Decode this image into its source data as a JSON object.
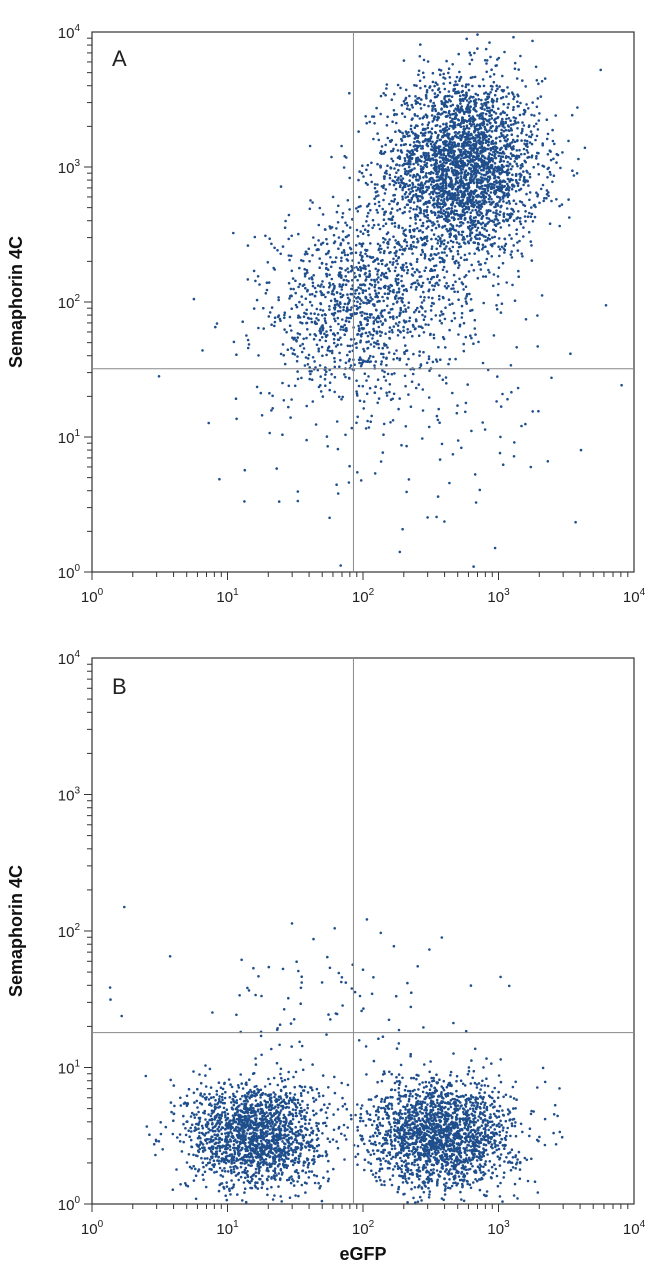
{
  "chart_data": [
    {
      "type": "scatter",
      "panel_label": "A",
      "title": "",
      "xlabel": "",
      "ylabel": "Semaphorin 4C",
      "x_scale": "log",
      "y_scale": "log",
      "xlim": [
        1,
        10000
      ],
      "ylim": [
        1,
        10000
      ],
      "x_ticks": [
        1,
        10,
        100,
        1000,
        10000
      ],
      "y_ticks": [
        1,
        10,
        100,
        1000,
        10000
      ],
      "x_tick_labels": [
        {
          "base": "10",
          "exp": "0"
        },
        {
          "base": "10",
          "exp": "1"
        },
        {
          "base": "10",
          "exp": "2"
        },
        {
          "base": "10",
          "exp": "3"
        },
        {
          "base": "10",
          "exp": "4"
        }
      ],
      "y_tick_labels": [
        {
          "base": "10",
          "exp": "0"
        },
        {
          "base": "10",
          "exp": "1"
        },
        {
          "base": "10",
          "exp": "2"
        },
        {
          "base": "10",
          "exp": "3"
        },
        {
          "base": "10",
          "exp": "4"
        }
      ],
      "gate_x": 85,
      "gate_y": 32,
      "point_color": "#1f4e8c",
      "populations": [
        {
          "center": [
            550,
            1000
          ],
          "spread_log": [
            0.28,
            0.33
          ],
          "count": 3000
        },
        {
          "center": [
            120,
            130
          ],
          "spread_log": [
            0.35,
            0.32
          ],
          "count": 900
        },
        {
          "center": [
            70,
            60
          ],
          "spread_log": [
            0.3,
            0.25
          ],
          "count": 350
        },
        {
          "center": [
            250,
            20
          ],
          "spread_log": [
            0.65,
            0.45
          ],
          "count": 180
        }
      ]
    },
    {
      "type": "scatter",
      "panel_label": "B",
      "title": "",
      "xlabel": "eGFP",
      "ylabel": "Semaphorin 4C",
      "x_scale": "log",
      "y_scale": "log",
      "xlim": [
        1,
        10000
      ],
      "ylim": [
        1,
        10000
      ],
      "x_ticks": [
        1,
        10,
        100,
        1000,
        10000
      ],
      "y_ticks": [
        1,
        10,
        100,
        1000,
        10000
      ],
      "x_tick_labels": [
        {
          "base": "10",
          "exp": "0"
        },
        {
          "base": "10",
          "exp": "1"
        },
        {
          "base": "10",
          "exp": "2"
        },
        {
          "base": "10",
          "exp": "3"
        },
        {
          "base": "10",
          "exp": "4"
        }
      ],
      "y_tick_labels": [
        {
          "base": "10",
          "exp": "0"
        },
        {
          "base": "10",
          "exp": "1"
        },
        {
          "base": "10",
          "exp": "2"
        },
        {
          "base": "10",
          "exp": "3"
        },
        {
          "base": "10",
          "exp": "4"
        }
      ],
      "gate_x": 85,
      "gate_y": 18,
      "point_color": "#1f4e8c",
      "populations": [
        {
          "center": [
            16,
            3.2
          ],
          "spread_log": [
            0.25,
            0.2
          ],
          "count": 1800
        },
        {
          "center": [
            380,
            3.2
          ],
          "spread_log": [
            0.27,
            0.2
          ],
          "count": 2000
        },
        {
          "center": [
            60,
            28
          ],
          "spread_log": [
            0.6,
            0.3
          ],
          "count": 90
        }
      ]
    }
  ]
}
